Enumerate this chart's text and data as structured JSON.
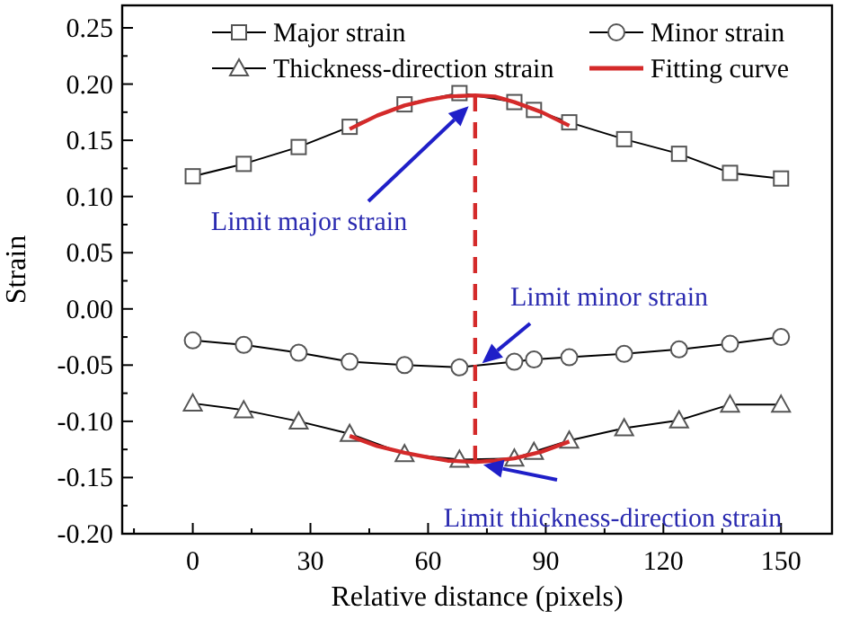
{
  "chart_data": {
    "type": "line",
    "xlabel": "Relative distance (pixels)",
    "ylabel": "Strain",
    "xlim": [
      -18,
      163
    ],
    "ylim": [
      -0.2,
      0.27
    ],
    "xticks": [
      {
        "value": -15,
        "label": null
      },
      0,
      {
        "value": 15,
        "label": null
      },
      30,
      {
        "value": 45,
        "label": null
      },
      60,
      {
        "value": 75,
        "label": null
      },
      90,
      {
        "value": 105,
        "label": null
      },
      120,
      {
        "value": 135,
        "label": null
      },
      150
    ],
    "yticks": [
      {
        "value": -0.2,
        "label": "-0.20"
      },
      {
        "value": -0.175,
        "label": null
      },
      {
        "value": -0.15,
        "label": "-0.15"
      },
      {
        "value": -0.125,
        "label": null
      },
      {
        "value": -0.1,
        "label": "-0.10"
      },
      {
        "value": -0.075,
        "label": null
      },
      {
        "value": -0.05,
        "label": "-0.05"
      },
      {
        "value": -0.025,
        "label": null
      },
      {
        "value": 0,
        "label": "0.00"
      },
      {
        "value": 0.025,
        "label": null
      },
      {
        "value": 0.05,
        "label": "0.05"
      },
      {
        "value": 0.075,
        "label": null
      },
      {
        "value": 0.1,
        "label": "0.10"
      },
      {
        "value": 0.125,
        "label": null
      },
      {
        "value": 0.15,
        "label": "0.15"
      },
      {
        "value": 0.175,
        "label": null
      },
      {
        "value": 0.2,
        "label": "0.20"
      },
      {
        "value": 0.225,
        "label": null
      },
      {
        "value": 0.25,
        "label": "0.25"
      }
    ],
    "grid": false,
    "legend": "top",
    "series": [
      {
        "name": "Major strain",
        "color": "#000000",
        "marker": "square",
        "x": [
          0,
          13,
          27,
          40,
          54,
          68,
          82,
          87,
          96,
          110,
          124,
          137,
          150
        ],
        "values": [
          0.118,
          0.129,
          0.144,
          0.162,
          0.182,
          0.192,
          0.184,
          0.177,
          0.166,
          0.151,
          0.138,
          0.121,
          0.116
        ]
      },
      {
        "name": "Minor strain",
        "color": "#000000",
        "marker": "circle",
        "x": [
          0,
          13,
          27,
          40,
          54,
          68,
          82,
          87,
          96,
          110,
          124,
          137,
          150
        ],
        "values": [
          -0.028,
          -0.032,
          -0.039,
          -0.047,
          -0.05,
          -0.052,
          -0.047,
          -0.045,
          -0.043,
          -0.04,
          -0.036,
          -0.031,
          -0.025
        ]
      },
      {
        "name": "Thickness-direction strain",
        "color": "#000000",
        "marker": "triangle",
        "x": [
          0,
          13,
          27,
          40,
          54,
          68,
          82,
          87,
          96,
          110,
          124,
          137,
          150
        ],
        "values": [
          -0.084,
          -0.09,
          -0.1,
          -0.111,
          -0.129,
          -0.134,
          -0.133,
          -0.127,
          -0.117,
          -0.106,
          -0.099,
          -0.085,
          -0.085
        ]
      },
      {
        "name": "Fitting curve",
        "color": "#d42a2a",
        "marker": "none",
        "x": [
          40,
          47,
          54,
          60,
          65,
          72,
          77,
          82,
          89,
          96
        ],
        "values": [
          0.16,
          0.172,
          0.181,
          0.186,
          0.189,
          0.19,
          0.189,
          0.184,
          0.175,
          0.163
        ]
      },
      {
        "color": "#d42a2a",
        "marker": "none",
        "x": [
          40,
          47,
          54,
          60,
          65,
          72,
          77,
          82,
          89,
          96
        ],
        "values": [
          -0.113,
          -0.122,
          -0.128,
          -0.132,
          -0.135,
          -0.136,
          -0.135,
          -0.133,
          -0.127,
          -0.118
        ]
      },
      {
        "color": "#d42a2a",
        "marker": "none",
        "line_style": "dashed",
        "x": [
          72,
          72
        ],
        "values": [
          0.19,
          -0.136
        ]
      }
    ],
    "annotations": [
      "Limit major strain",
      "Limit minor strain",
      "Limit thickness-direction strain"
    ]
  }
}
